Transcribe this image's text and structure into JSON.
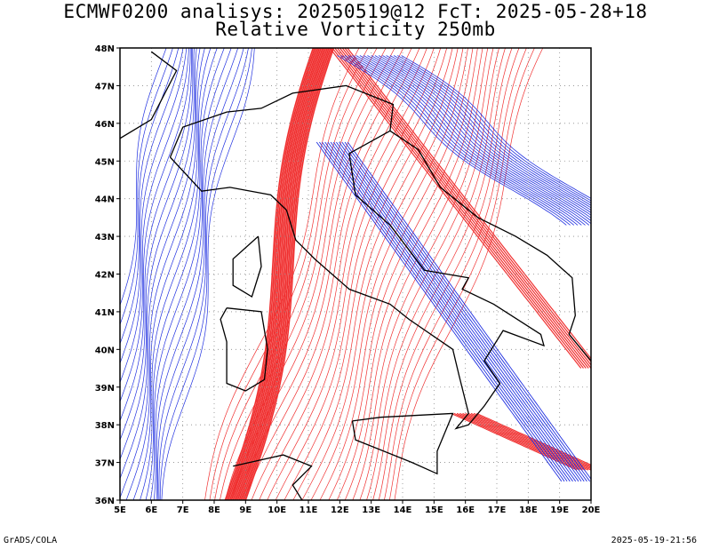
{
  "header": {
    "title_line1": "ECMWF0200 analisys: 20250519@12 FcT: 2025-05-28+18",
    "title_line2": "Relative Vorticity 250mb"
  },
  "map": {
    "projection": "lat-lon",
    "lon_range": [
      5,
      20
    ],
    "lat_range": [
      36,
      48
    ],
    "lon_ticks": [
      "5E",
      "6E",
      "7E",
      "8E",
      "9E",
      "10E",
      "11E",
      "12E",
      "13E",
      "14E",
      "15E",
      "16E",
      "17E",
      "18E",
      "19E",
      "20E"
    ],
    "lat_ticks": [
      "36N",
      "37N",
      "38N",
      "39N",
      "40N",
      "41N",
      "42N",
      "43N",
      "44N",
      "45N",
      "46N",
      "47N",
      "48N"
    ],
    "colors": {
      "positive_contours": "#f03030",
      "negative_contours": "#2030e0",
      "coastline": "#000000",
      "grid": "#8a8a8a"
    }
  },
  "footer": {
    "left": "GrADS/COLA",
    "right": "2025-05-19-21:56"
  }
}
